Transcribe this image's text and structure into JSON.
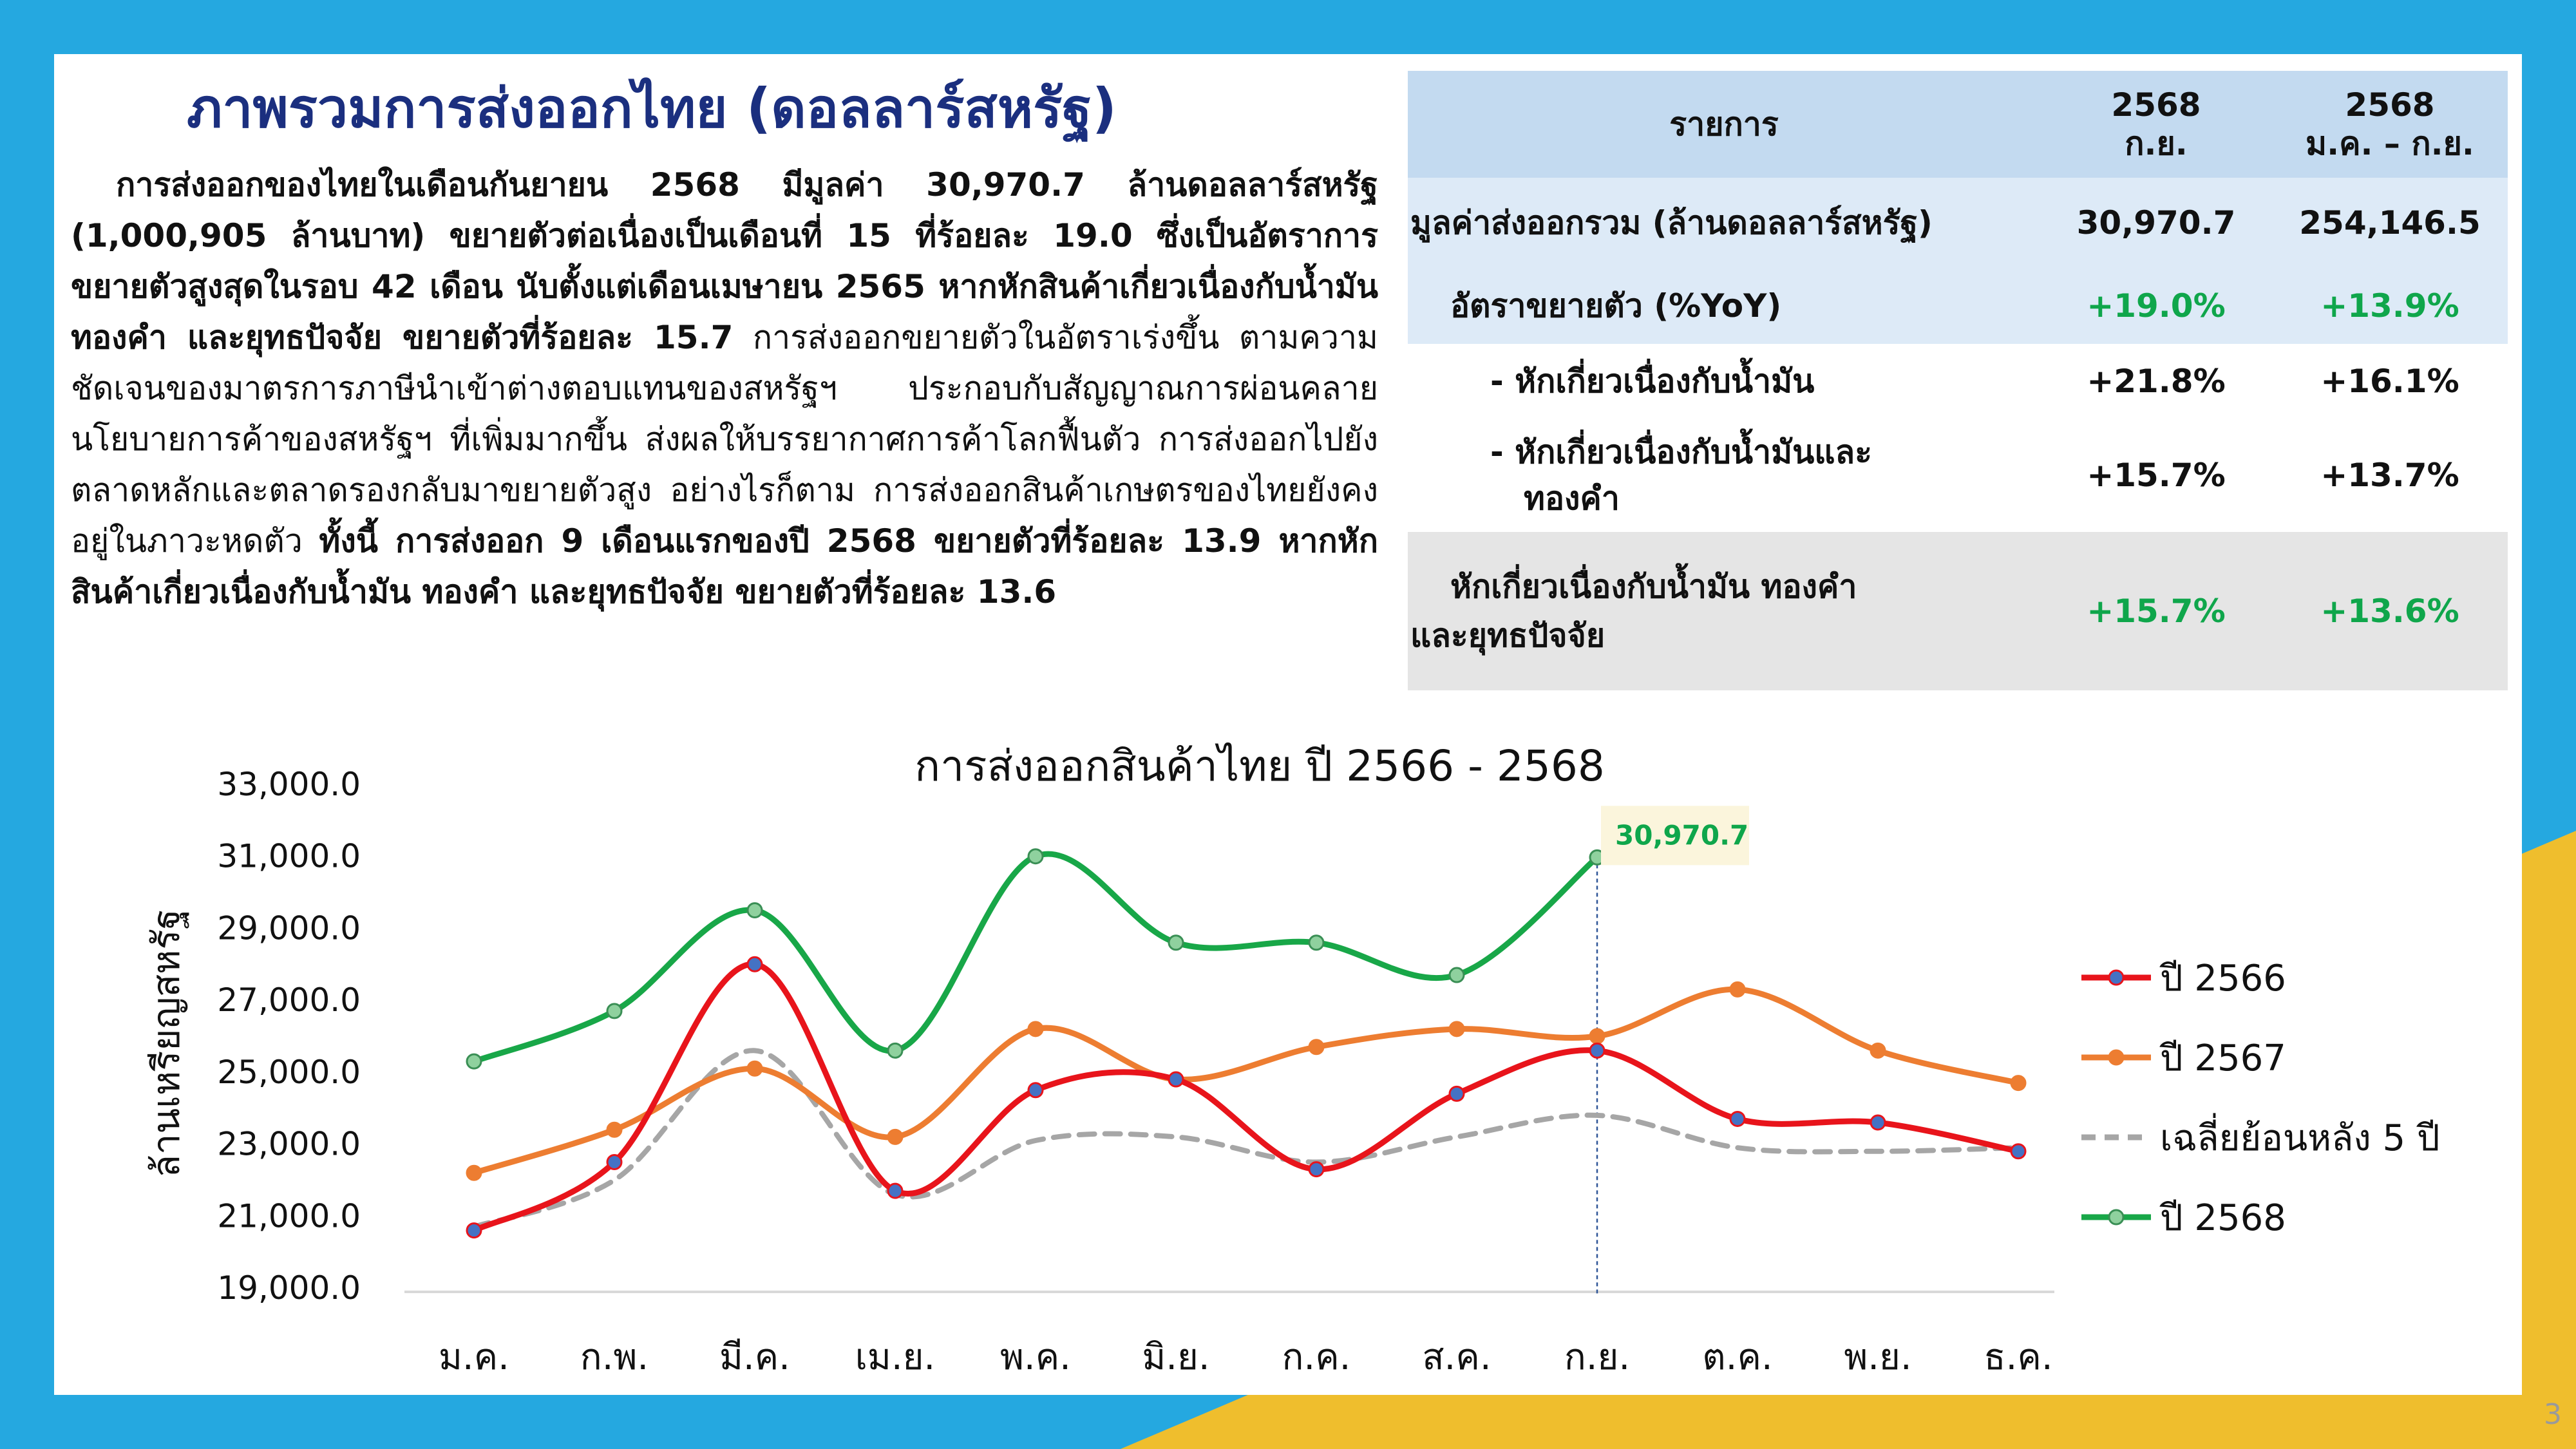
{
  "colors": {
    "background": "#25a8e0",
    "accent_yellow": "#efbe2d",
    "title": "#1b2f7f",
    "positive": "#0fa64b"
  },
  "page_number": "3",
  "title": "ภาพรวมการส่งออกไทย (ดอลลาร์สหรัฐ)",
  "summary": {
    "bold_text": "การส่งออกของไทยในเดือนกันยายน 2568 มีมูลค่า 30,970.7 ล้านดอลลาร์สหรัฐ (1,000,905 ล้านบาท) ขยายตัวต่อเนื่องเป็นเดือนที่ 15 ที่ร้อยละ 19.0 ซึ่งเป็นอัตราการขยายตัวสูงสุดในรอบ 42 เดือน นับตั้งแต่เดือนเมษายน 2565 หากหักสินค้าเกี่ยวเนื่องกับน้ำมัน ทองคำ และยุทธปัจจัย ขยายตัวที่ร้อยละ 15.7",
    "regular_text": " การส่งออกขยายตัวในอัตราเร่งขึ้น ตามความชัดเจนของมาตรการภาษีนำเข้าต่างตอบแทนของสหรัฐฯ ประกอบกับสัญญาณการผ่อนคลายนโยบายการค้าของสหรัฐฯ ที่เพิ่มมากขึ้น ส่งผลให้บรรยากาศการค้าโลกฟื้นตัว การส่งออกไปยังตลาดหลักและตลาดรองกลับมาขยายตัวสูง อย่างไรก็ตาม การส่งออกสินค้าเกษตรของไทยยังคงอยู่ในภาวะหดตัว ",
    "bold_text_2": "ทั้งนี้ การส่งออก 9 เดือนแรกของปี 2568 ขยายตัวที่ร้อยละ 13.9 หากหักสินค้าเกี่ยวเนื่องกับน้ำมัน ทองคำ และยุทธปัจจัย ขยายตัวที่ร้อยละ 13.6"
  },
  "table": {
    "headers": {
      "item": "รายการ",
      "col1_line1": "2568",
      "col1_line2": "ก.ย.",
      "col2_line1": "2568",
      "col2_line2": "ม.ค. – ก.ย."
    },
    "rows": [
      {
        "label": "มูลค่าส่งออกรวม (ล้านดอลลาร์สหรัฐ)",
        "v1": "30,970.7",
        "v2": "254,146.5"
      },
      {
        "label": "อัตราขยายตัว (%YoY)",
        "v1": "+19.0%",
        "v2": "+13.9%"
      },
      {
        "label": "- หักเกี่ยวเนื่องกับน้ำมัน",
        "v1": "+21.8%",
        "v2": "+16.1%"
      },
      {
        "label_line1": "- หักเกี่ยวเนื่องกับน้ำมันและ",
        "label_line2": "ทองคำ",
        "v1": "+15.7%",
        "v2": "+13.7%"
      },
      {
        "label_line1": "หักเกี่ยวเนื่องกับน้ำมัน ทองคำ",
        "label_line2": "และยุทธปัจจัย",
        "v1": "+15.7%",
        "v2": "+13.6%"
      }
    ]
  },
  "chart_data": {
    "type": "line",
    "title": "การส่งออกสินค้าไทย ปี 2566 - 2568",
    "ylabel": "ล้านเหรียญสหรัฐ",
    "xlabel": "",
    "ylim": [
      19000,
      33000
    ],
    "yticks": [
      "33,000.0",
      "31,000.0",
      "29,000.0",
      "27,000.0",
      "25,000.0",
      "23,000.0",
      "21,000.0",
      "19,000.0"
    ],
    "categories": [
      "ม.ค.",
      "ก.พ.",
      "มี.ค.",
      "เม.ย.",
      "พ.ค.",
      "มิ.ย.",
      "ก.ค.",
      "ส.ค.",
      "ก.ย.",
      "ต.ค.",
      "พ.ย.",
      "ธ.ค."
    ],
    "series": [
      {
        "name": "ปี 2566",
        "color": "#e8141b",
        "marker": "#4472c4",
        "dashed": false,
        "values": [
          20600,
          22500,
          28000,
          21700,
          24500,
          24800,
          22300,
          24400,
          25600,
          23700,
          23600,
          22800
        ]
      },
      {
        "name": "ปี 2567",
        "color": "#ed7d31",
        "marker": "#ed7d31",
        "dashed": false,
        "values": [
          22200,
          23400,
          25100,
          23200,
          26200,
          24800,
          25700,
          26200,
          26000,
          27300,
          25600,
          24700
        ]
      },
      {
        "name": "เฉลี่ยย้อนหลัง 5 ปี",
        "color": "#a6a6a6",
        "marker": null,
        "dashed": true,
        "values": [
          20700,
          22000,
          25600,
          21600,
          23100,
          23200,
          22500,
          23200,
          23800,
          22900,
          22800,
          22900
        ]
      },
      {
        "name": "ปี 2568",
        "color": "#18a748",
        "marker": "#8fd19e",
        "dashed": false,
        "values": [
          25300,
          26700,
          29500,
          25600,
          31000,
          28600,
          28600,
          27700,
          30970.7,
          null,
          null,
          null
        ]
      }
    ],
    "annotation": {
      "text": "30,970.7",
      "category": "ก.ย.",
      "series": "ปี 2568"
    },
    "legend_position": "right"
  }
}
